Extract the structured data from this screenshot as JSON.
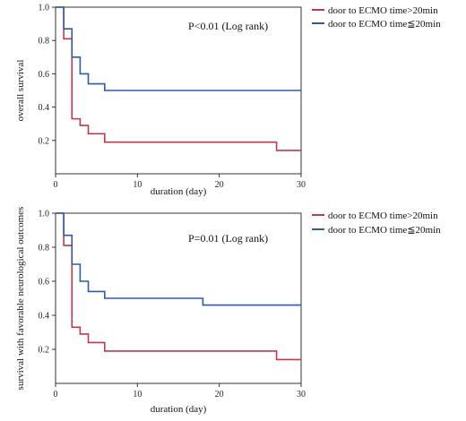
{
  "chart_data": [
    {
      "type": "line",
      "step": "post",
      "ylabel": "overall survival",
      "xlabel": "duration (day)",
      "annotation": "P<0.01 (Log rank)",
      "xlim": [
        0,
        30
      ],
      "ylim": [
        0,
        1.0
      ],
      "xticks": [
        "0",
        "10",
        "20",
        "30"
      ],
      "yticks": [
        "0.2",
        "0.4",
        "0.6",
        "0.8",
        "1.0"
      ],
      "grid": false,
      "legend_position": "outside-right-top",
      "series": [
        {
          "name": "door to ECMO time>20min",
          "color": "#c0394b",
          "x": [
            0,
            1,
            2,
            3,
            4,
            6,
            27,
            30
          ],
          "y": [
            1.0,
            0.81,
            0.33,
            0.29,
            0.24,
            0.19,
            0.14,
            0.14
          ]
        },
        {
          "name": "door to ECMO time≦20min",
          "color": "#2e5aa8",
          "x": [
            0,
            1,
            2,
            3,
            4,
            6,
            30
          ],
          "y": [
            1.0,
            0.87,
            0.7,
            0.6,
            0.54,
            0.5,
            0.5
          ]
        }
      ]
    },
    {
      "type": "line",
      "step": "post",
      "ylabel": "survival with favorable neurological outcomes",
      "xlabel": "duration (day)",
      "annotation": "P=0.01 (Log rank)",
      "xlim": [
        0,
        30
      ],
      "ylim": [
        0,
        1.0
      ],
      "xticks": [
        "0",
        "10",
        "20",
        "30"
      ],
      "yticks": [
        "0.2",
        "0.4",
        "0.6",
        "0.8",
        "1.0"
      ],
      "grid": false,
      "legend_position": "outside-right-top",
      "series": [
        {
          "name": "door to ECMO time>20min",
          "color": "#c0394b",
          "x": [
            0,
            1,
            2,
            3,
            4,
            6,
            27,
            30
          ],
          "y": [
            1.0,
            0.81,
            0.33,
            0.29,
            0.24,
            0.19,
            0.14,
            0.14
          ]
        },
        {
          "name": "door to ECMO time≦20min",
          "color": "#2e5aa8",
          "x": [
            0,
            1,
            2,
            3,
            4,
            6,
            18,
            30
          ],
          "y": [
            1.0,
            0.87,
            0.7,
            0.6,
            0.54,
            0.5,
            0.46,
            0.46
          ]
        }
      ]
    }
  ]
}
